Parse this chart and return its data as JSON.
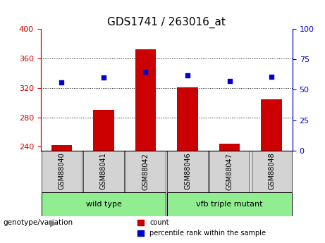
{
  "title": "GDS1741 / 263016_at",
  "samples": [
    "GSM88040",
    "GSM88041",
    "GSM88042",
    "GSM88046",
    "GSM88047",
    "GSM88048"
  ],
  "counts": [
    242,
    290,
    373,
    321,
    244,
    305
  ],
  "percentiles": [
    56,
    60,
    65,
    62,
    57,
    61
  ],
  "ylim_left": [
    235,
    400
  ],
  "ylim_right": [
    0,
    100
  ],
  "yticks_left": [
    240,
    280,
    320,
    360,
    400
  ],
  "yticks_right": [
    0,
    25,
    50,
    75,
    100
  ],
  "bar_color": "#cc0000",
  "dot_color": "#0000cc",
  "grid_color": "#000000",
  "groups": [
    {
      "label": "wild type",
      "samples": [
        "GSM88040",
        "GSM88041",
        "GSM88042"
      ],
      "color": "#90ee90"
    },
    {
      "label": "vfb triple mutant",
      "samples": [
        "GSM88046",
        "GSM88047",
        "GSM88048"
      ],
      "color": "#90ee90"
    }
  ],
  "legend_items": [
    {
      "label": "count",
      "color": "#cc0000"
    },
    {
      "label": "percentile rank within the sample",
      "color": "#0000cc"
    }
  ],
  "genotype_label": "genotype/variation",
  "tick_label_color_left": "#cc0000",
  "tick_label_color_right": "#0000cc",
  "bar_bottom": 235
}
